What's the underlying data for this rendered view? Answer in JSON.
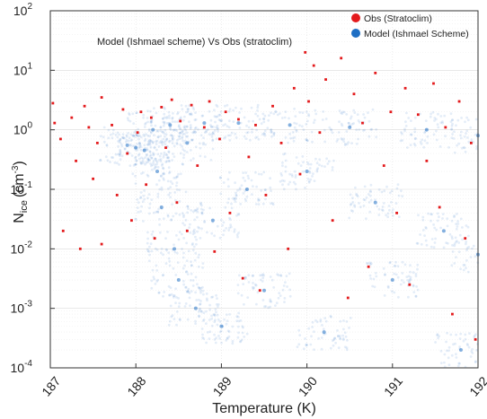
{
  "chart_data": {
    "type": "scatter",
    "title": "",
    "annotation": "Model (Ishmael scheme) Vs Obs (stratoclim)",
    "xlabel": "Temperature (K)",
    "ylabel": "N_ice (cm^-3)",
    "ylabel_main": "N",
    "ylabel_sub": "ice",
    "ylabel_units": "(cm",
    "ylabel_exp": "-3",
    "ylabel_close": ")",
    "xlim": [
      187,
      192
    ],
    "ylim": [
      0.0001,
      100
    ],
    "yscale": "log",
    "x_ticks": [
      "187",
      "188",
      "189",
      "190",
      "191",
      "192"
    ],
    "y_tick_exponents": [
      "-4",
      "-3",
      "-2",
      "-1",
      "0",
      "1",
      "2"
    ],
    "y_tick_base": "10",
    "grid": true,
    "legend_position": "top-right",
    "series": [
      {
        "name": "Obs (Stratoclim)",
        "color": "#e31a1c",
        "marker": "small-square",
        "points": [
          [
            187.03,
            2.8
          ],
          [
            187.05,
            1.3
          ],
          [
            187.12,
            0.7
          ],
          [
            187.15,
            0.02
          ],
          [
            187.25,
            1.6
          ],
          [
            187.3,
            0.3
          ],
          [
            187.35,
            0.01
          ],
          [
            187.4,
            2.5
          ],
          [
            187.45,
            1.1
          ],
          [
            187.5,
            0.15
          ],
          [
            187.55,
            0.6
          ],
          [
            187.6,
            3.5
          ],
          [
            187.6,
            0.012
          ],
          [
            187.72,
            1.2
          ],
          [
            187.78,
            0.08
          ],
          [
            187.85,
            2.2
          ],
          [
            187.9,
            0.4
          ],
          [
            187.95,
            0.03
          ],
          [
            188.02,
            0.9
          ],
          [
            188.06,
            2.0
          ],
          [
            188.12,
            0.12
          ],
          [
            188.18,
            1.6
          ],
          [
            188.22,
            0.015
          ],
          [
            188.3,
            2.4
          ],
          [
            188.35,
            0.5
          ],
          [
            188.42,
            3.2
          ],
          [
            188.48,
            0.06
          ],
          [
            188.52,
            1.4
          ],
          [
            188.6,
            0.02
          ],
          [
            188.65,
            2.6
          ],
          [
            188.72,
            0.25
          ],
          [
            188.8,
            1.1
          ],
          [
            188.86,
            3.0
          ],
          [
            188.92,
            0.009
          ],
          [
            188.98,
            0.7
          ],
          [
            189.05,
            2.0
          ],
          [
            189.1,
            0.04
          ],
          [
            189.2,
            1.5
          ],
          [
            189.25,
            0.0032
          ],
          [
            189.32,
            0.35
          ],
          [
            189.4,
            1.2
          ],
          [
            189.45,
            0.002
          ],
          [
            189.52,
            0.08
          ],
          [
            189.6,
            2.5
          ],
          [
            189.7,
            0.6
          ],
          [
            189.78,
            0.01
          ],
          [
            189.85,
            5.0
          ],
          [
            189.92,
            0.18
          ],
          [
            189.98,
            20
          ],
          [
            190.02,
            3.0
          ],
          [
            190.08,
            12
          ],
          [
            190.15,
            0.9
          ],
          [
            190.22,
            7.0
          ],
          [
            190.3,
            0.03
          ],
          [
            190.4,
            16
          ],
          [
            190.48,
            0.0015
          ],
          [
            190.55,
            4.0
          ],
          [
            190.65,
            1.3
          ],
          [
            190.72,
            0.005
          ],
          [
            190.8,
            9.0
          ],
          [
            190.9,
            0.25
          ],
          [
            190.98,
            2.0
          ],
          [
            191.05,
            0.04
          ],
          [
            191.15,
            5.0
          ],
          [
            191.2,
            0.0025
          ],
          [
            191.3,
            1.8
          ],
          [
            191.4,
            0.3
          ],
          [
            191.48,
            6.0
          ],
          [
            191.55,
            0.05
          ],
          [
            191.62,
            1.1
          ],
          [
            191.7,
            0.0008
          ],
          [
            191.78,
            3.0
          ],
          [
            191.85,
            0.015
          ],
          [
            191.92,
            0.6
          ],
          [
            191.97,
            0.0003
          ]
        ]
      },
      {
        "name": "Model (Ishmael Scheme)",
        "color": "#1f6fc4",
        "marker": "dot",
        "points": [
          [
            187.9,
            0.55
          ],
          [
            188.0,
            0.5
          ],
          [
            188.1,
            0.45
          ],
          [
            188.2,
            1.0
          ],
          [
            188.25,
            0.2
          ],
          [
            188.3,
            0.05
          ],
          [
            188.4,
            1.2
          ],
          [
            188.45,
            0.01
          ],
          [
            188.5,
            0.003
          ],
          [
            188.6,
            0.6
          ],
          [
            188.7,
            0.001
          ],
          [
            188.8,
            1.3
          ],
          [
            188.9,
            0.03
          ],
          [
            189.0,
            0.0005
          ],
          [
            189.2,
            1.3
          ],
          [
            189.3,
            0.1
          ],
          [
            189.5,
            0.002
          ],
          [
            189.8,
            1.2
          ],
          [
            190.0,
            0.2
          ],
          [
            190.2,
            0.0004
          ],
          [
            190.5,
            1.1
          ],
          [
            190.8,
            0.06
          ],
          [
            191.0,
            0.003
          ],
          [
            191.4,
            1.0
          ],
          [
            191.6,
            0.02
          ],
          [
            191.8,
            0.0002
          ],
          [
            192.0,
            0.8
          ],
          [
            192.0,
            0.008
          ]
        ]
      }
    ]
  }
}
